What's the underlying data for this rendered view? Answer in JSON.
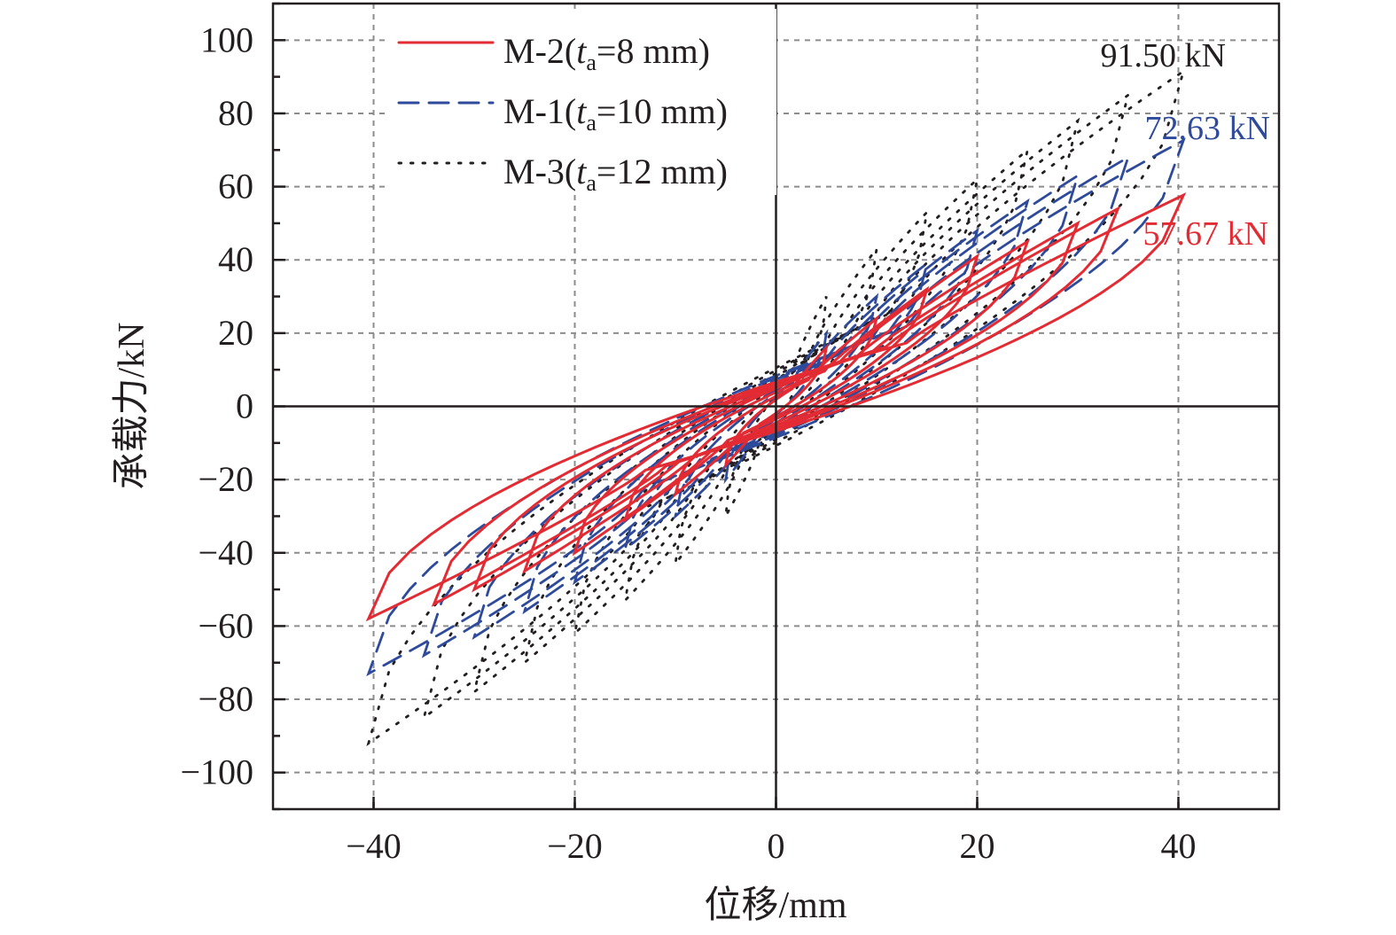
{
  "chart_data": {
    "type": "line",
    "xlabel": "位移/mm",
    "ylabel": "承载力/kN",
    "xlim": [
      -50,
      50
    ],
    "ylim": [
      -110,
      110
    ],
    "xticks": [
      -40,
      -20,
      0,
      20,
      40
    ],
    "xtick_labels": [
      "−40",
      "−20",
      "0",
      "20",
      "40"
    ],
    "yticks": [
      100,
      80,
      60,
      40,
      20,
      0,
      -20,
      -40,
      -60,
      -80,
      -100
    ],
    "ytick_labels": [
      "100",
      "80",
      "60",
      "40",
      "20",
      "0",
      "−20",
      "−40",
      "−60",
      "−80",
      "−100"
    ],
    "grid": true,
    "legend_position": "top-left",
    "series": [
      {
        "name": "M-2(ta=8 mm)",
        "legend_main": "M-2(",
        "legend_italic": "t",
        "legend_sub": "a",
        "legend_rest": "=8 mm)",
        "color": "#e32b33",
        "style": "solid",
        "peak_label": "57.67 kN",
        "loops": [
          {
            "amp": 5,
            "pos": 16,
            "neg": -16
          },
          {
            "amp": 10,
            "pos": 24,
            "neg": -24
          },
          {
            "amp": 15,
            "pos": 32,
            "neg": -31
          },
          {
            "amp": 20,
            "pos": 41,
            "neg": -40
          },
          {
            "amp": 25,
            "pos": 45,
            "neg": -45
          },
          {
            "amp": 30,
            "pos": 50,
            "neg": -50
          },
          {
            "amp": 34,
            "pos": 54,
            "neg": -54
          },
          {
            "amp": 40.5,
            "pos": 57.67,
            "neg": -58
          }
        ]
      },
      {
        "name": "M-1(ta=10 mm)",
        "legend_main": "M-1(",
        "legend_italic": "t",
        "legend_sub": "a",
        "legend_rest": "=10 mm)",
        "color": "#2e4a9b",
        "style": "dashed",
        "peak_label": "72.63 kN",
        "loops": [
          {
            "amp": 5,
            "pos": 20,
            "neg": -20
          },
          {
            "amp": 10,
            "pos": 30,
            "neg": -30
          },
          {
            "amp": 15,
            "pos": 39,
            "neg": -39
          },
          {
            "amp": 20,
            "pos": 48,
            "neg": -48
          },
          {
            "amp": 25,
            "pos": 56,
            "neg": -56
          },
          {
            "amp": 30,
            "pos": 63,
            "neg": -63
          },
          {
            "amp": 35,
            "pos": 68,
            "neg": -68
          },
          {
            "amp": 40.5,
            "pos": 72.63,
            "neg": -73
          }
        ]
      },
      {
        "name": "M-3(ta=12 mm)",
        "legend_main": "M-3(",
        "legend_italic": "t",
        "legend_sub": "a",
        "legend_rest": "=12 mm)",
        "color": "#231f20",
        "style": "dotted",
        "peak_label": "91.50 kN",
        "loops": [
          {
            "amp": 5,
            "pos": 30,
            "neg": -30
          },
          {
            "amp": 10,
            "pos": 43,
            "neg": -43
          },
          {
            "amp": 15,
            "pos": 53,
            "neg": -53
          },
          {
            "amp": 20,
            "pos": 62,
            "neg": -62
          },
          {
            "amp": 25,
            "pos": 70,
            "neg": -70
          },
          {
            "amp": 30,
            "pos": 78,
            "neg": -78
          },
          {
            "amp": 35,
            "pos": 85,
            "neg": -85
          },
          {
            "amp": 40.5,
            "pos": 91.5,
            "neg": -92
          }
        ]
      }
    ]
  }
}
